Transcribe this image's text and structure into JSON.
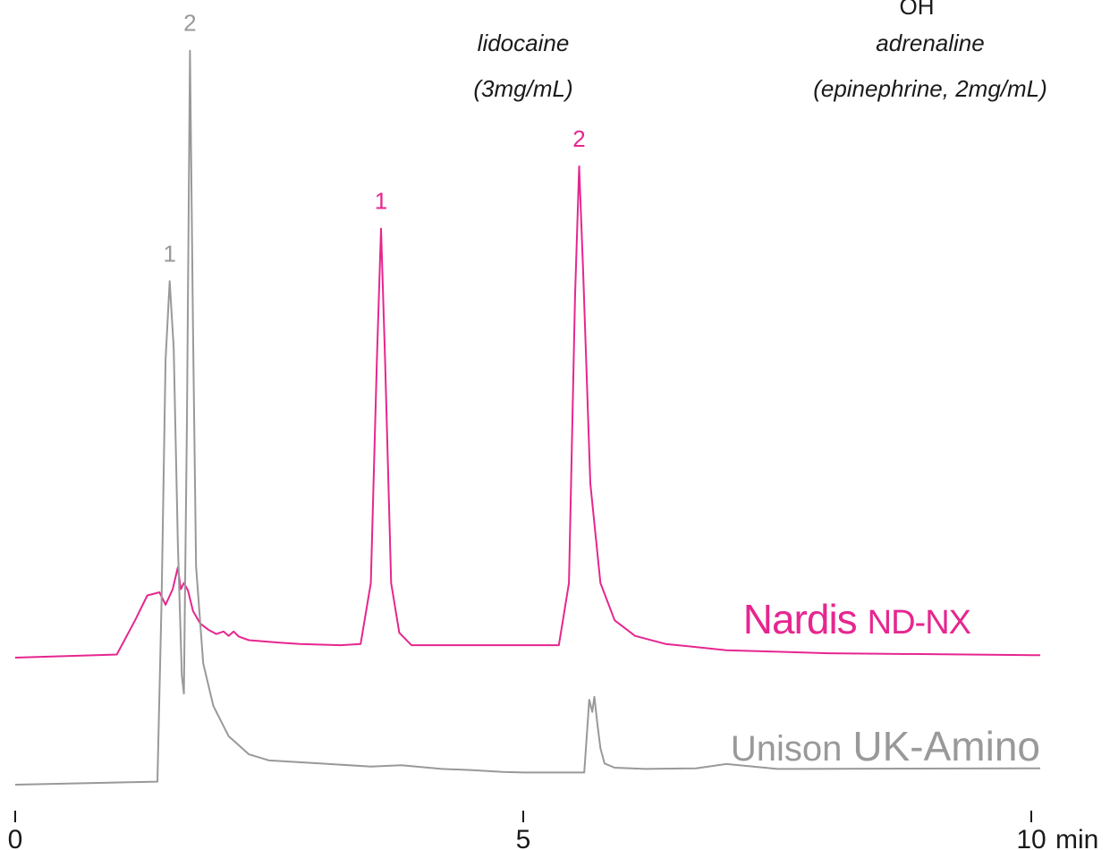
{
  "chart_data": {
    "type": "line",
    "title": "",
    "xlabel": "",
    "ylabel": "",
    "x_unit": "min",
    "xlim": [
      0,
      10
    ],
    "ylim": [
      0,
      1
    ],
    "x_ticks": [
      {
        "value": 0,
        "label": "0"
      },
      {
        "value": 5,
        "label": "5"
      },
      {
        "value": 10,
        "label": "10"
      }
    ],
    "grid": false,
    "compound_labels": [
      {
        "name": "lidocaine",
        "detail": "(3mg/mL)"
      },
      {
        "name": "adrenaline",
        "detail": "(epinephrine, 2mg/mL)",
        "fragment": "OH"
      }
    ],
    "series": [
      {
        "brand": "Nardis",
        "model": "ND-NX",
        "color": "#e6268f",
        "peaks": [
          {
            "label": "1",
            "x": 3.6,
            "height": 0.69
          },
          {
            "label": "2",
            "x": 5.55,
            "height": 0.79
          }
        ],
        "x": [
          0.0,
          1.0,
          1.18,
          1.3,
          1.42,
          1.48,
          1.55,
          1.6,
          1.63,
          1.66,
          1.7,
          1.75,
          1.82,
          1.9,
          1.98,
          2.05,
          2.1,
          2.15,
          2.2,
          2.3,
          2.6,
          2.8,
          3.2,
          3.4,
          3.5,
          3.56,
          3.6,
          3.64,
          3.7,
          3.78,
          3.9,
          5.35,
          5.45,
          5.51,
          5.55,
          5.59,
          5.66,
          5.76,
          5.9,
          6.1,
          6.4,
          7.0,
          8.0,
          10.0
        ],
        "y": [
          0.0,
          0.005,
          0.06,
          0.1,
          0.105,
          0.085,
          0.11,
          0.145,
          0.11,
          0.12,
          0.108,
          0.075,
          0.055,
          0.045,
          0.038,
          0.042,
          0.035,
          0.042,
          0.034,
          0.028,
          0.024,
          0.022,
          0.02,
          0.022,
          0.12,
          0.48,
          0.69,
          0.48,
          0.12,
          0.04,
          0.02,
          0.02,
          0.12,
          0.58,
          0.79,
          0.62,
          0.28,
          0.12,
          0.06,
          0.035,
          0.022,
          0.012,
          0.007,
          0.004
        ]
      },
      {
        "brand": "Unison",
        "model": "UK-Amino",
        "color": "#999999",
        "peaks": [
          {
            "label": "1",
            "x": 1.52,
            "height": 0.83
          },
          {
            "label": "2",
            "x": 1.72,
            "height": 1.21
          }
        ],
        "x": [
          0.0,
          1.4,
          1.44,
          1.48,
          1.52,
          1.56,
          1.6,
          1.64,
          1.66,
          1.69,
          1.72,
          1.75,
          1.78,
          1.85,
          1.95,
          2.1,
          2.3,
          2.5,
          3.0,
          3.5,
          3.8,
          4.2,
          4.5,
          4.8,
          5.0,
          5.3,
          5.6,
          5.65,
          5.68,
          5.7,
          5.73,
          5.76,
          5.8,
          5.9,
          6.2,
          6.7,
          7.0,
          7.5,
          10.0
        ],
        "y": [
          0.0,
          0.005,
          0.3,
          0.7,
          0.83,
          0.72,
          0.4,
          0.18,
          0.15,
          0.6,
          1.21,
          0.75,
          0.36,
          0.2,
          0.13,
          0.08,
          0.05,
          0.04,
          0.035,
          0.03,
          0.032,
          0.026,
          0.024,
          0.021,
          0.02,
          0.02,
          0.02,
          0.14,
          0.12,
          0.145,
          0.1,
          0.06,
          0.035,
          0.028,
          0.026,
          0.027,
          0.034,
          0.026,
          0.027
        ]
      }
    ]
  }
}
